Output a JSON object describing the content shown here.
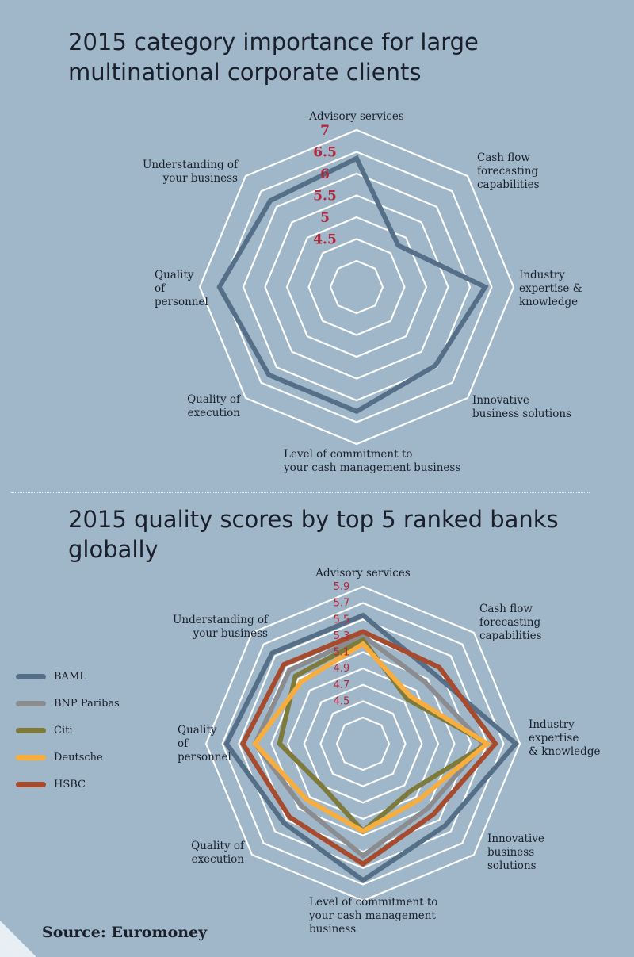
{
  "colors": {
    "background": "#9fb7c8",
    "grid": "#ffffff",
    "tick": "#b3283c",
    "text": "#1a1f2b"
  },
  "source": "Source: Euromoney",
  "chart_data": [
    {
      "type": "radar",
      "title": "2015 category importance for large multinational corporate clients",
      "axes": [
        "Advisory services",
        "Cash flow forecasting capabilities",
        "Industry expertise & knowledge",
        "Innovative business solutions",
        "Level of commitment to your cash management business",
        "Quality of execution",
        "Quality of personnel",
        "Understanding of your business"
      ],
      "axis_label_lines": [
        [
          "Advisory services"
        ],
        [
          "Cash flow",
          "forecasting",
          "capabilities"
        ],
        [
          "Industry",
          "expertise &",
          "knowledge"
        ],
        [
          "Innovative",
          "business solutions"
        ],
        [
          "Level of commitment to",
          "your cash management business"
        ],
        [
          "Quality of",
          "execution"
        ],
        [
          "Quality",
          "of",
          "personnel"
        ],
        [
          "Understanding of",
          "your business"
        ]
      ],
      "range": [
        4,
        7
      ],
      "ticks": [
        "4.5",
        "5",
        "5.5",
        "6",
        "6.5",
        "7"
      ],
      "grid": true,
      "series": [
        {
          "values": [
            6.35,
            4.75,
            6.35,
            5.95,
            6.25,
            6.25,
            6.55,
            6.2
          ],
          "color": "#566f88"
        }
      ]
    },
    {
      "type": "radar",
      "title": "2015 quality scores by top 5 ranked banks globally",
      "axes": [
        "Advisory services",
        "Cash flow forecasting capabilities",
        "Industry expertise & knowledge",
        "Innovative business solutions",
        "Level of commitment to your cash management business",
        "Quality of execution",
        "Quality of personnel",
        "Understanding of your business"
      ],
      "axis_label_lines": [
        [
          "Advisory services"
        ],
        [
          "Cash flow",
          "forecasting",
          "capabilities"
        ],
        [
          "Industry",
          "expertise",
          "& knowledge"
        ],
        [
          "Innovative",
          "business",
          "solutions"
        ],
        [
          "Level of commitment to",
          "your cash management",
          "business"
        ],
        [
          "Quality of",
          "execution"
        ],
        [
          "Quality",
          "of",
          "personnel"
        ],
        [
          "Understanding of",
          "your business"
        ]
      ],
      "range": [
        4.3,
        5.9
      ],
      "ticks": [
        "4.5",
        "4.7",
        "4.9",
        "5.1",
        "5.3",
        "5.5",
        "5.7",
        "5.9"
      ],
      "grid": true,
      "legend_position": "left",
      "series": [
        {
          "name": "BAML",
          "color": "#566f88",
          "values": [
            5.55,
            5.2,
            5.85,
            5.4,
            5.65,
            5.35,
            5.65,
            5.55
          ]
        },
        {
          "name": "BNP Paribas",
          "color": "#8a8c8f",
          "values": [
            5.3,
            5.05,
            5.45,
            5.1,
            5.35,
            5.05,
            5.3,
            5.25
          ]
        },
        {
          "name": "Citi",
          "color": "#7d7a3c",
          "values": [
            5.25,
            4.75,
            5.5,
            4.8,
            5.05,
            4.7,
            5.0,
            5.15
          ]
        },
        {
          "name": "Deutsche",
          "color": "#f7ae3e",
          "values": [
            5.2,
            4.8,
            5.5,
            4.95,
            5.05,
            4.95,
            5.3,
            5.05
          ]
        },
        {
          "name": "HSBC",
          "color": "#a64b2e",
          "values": [
            5.35,
            5.3,
            5.6,
            5.2,
            5.45,
            5.25,
            5.45,
            5.35
          ]
        }
      ]
    }
  ]
}
